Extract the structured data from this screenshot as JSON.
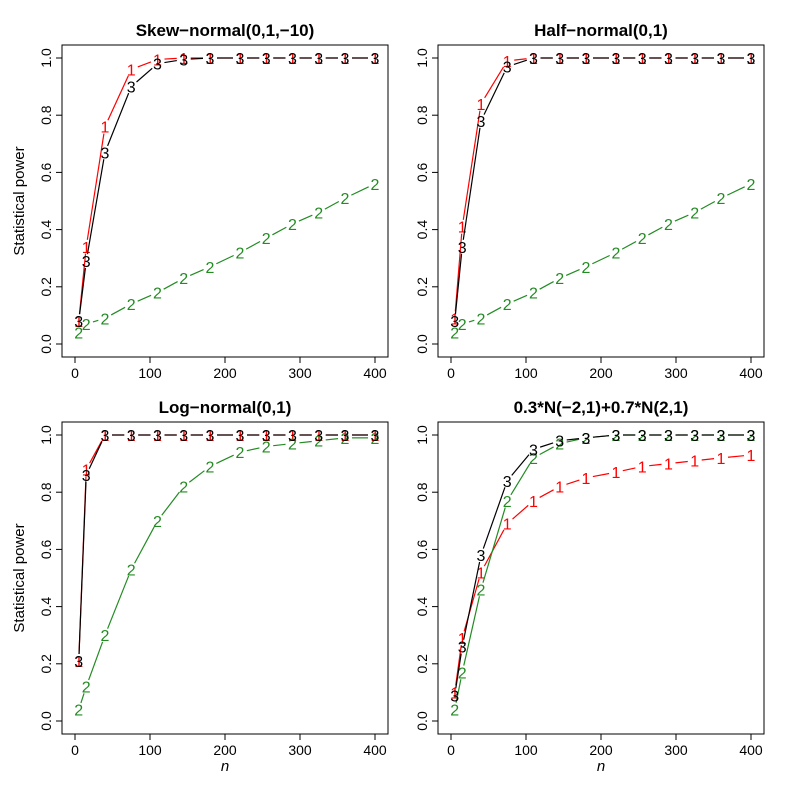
{
  "figure": {
    "x_label": "n",
    "y_label": "Statistical power"
  },
  "colors": {
    "1": "#ff0000",
    "2": "#228b22",
    "3": "#000000"
  },
  "chart_data": [
    {
      "type": "line",
      "title": "Skew−normal(0,1,−10)",
      "xlabel": "",
      "ylabel": "Statistical power",
      "xlim": [
        0,
        400
      ],
      "ylim": [
        0,
        1
      ],
      "x_ticks": [
        "0",
        "100",
        "200",
        "300",
        "400"
      ],
      "y_ticks": [
        "0.0",
        "0.2",
        "0.4",
        "0.6",
        "0.8",
        "1.0"
      ],
      "x": [
        5,
        15,
        40,
        75,
        110,
        145,
        180,
        220,
        255,
        290,
        325,
        360,
        400
      ],
      "series": [
        {
          "id": "1",
          "marker": "1",
          "values": [
            0.08,
            0.34,
            0.76,
            0.96,
            0.995,
            1,
            1,
            1,
            1,
            1,
            1,
            1,
            1
          ]
        },
        {
          "id": "2",
          "marker": "2",
          "values": [
            0.04,
            0.07,
            0.09,
            0.14,
            0.18,
            0.23,
            0.27,
            0.32,
            0.37,
            0.42,
            0.46,
            0.51,
            0.56
          ]
        },
        {
          "id": "3",
          "marker": "3",
          "values": [
            0.08,
            0.29,
            0.67,
            0.9,
            0.98,
            0.995,
            1,
            1,
            1,
            1,
            1,
            1,
            1
          ]
        }
      ]
    },
    {
      "type": "line",
      "title": "Half−normal(0,1)",
      "xlabel": "",
      "ylabel": "",
      "xlim": [
        0,
        400
      ],
      "ylim": [
        0,
        1
      ],
      "x_ticks": [
        "0",
        "100",
        "200",
        "300",
        "400"
      ],
      "y_ticks": [
        "0.0",
        "0.2",
        "0.4",
        "0.6",
        "0.8",
        "1.0"
      ],
      "x": [
        5,
        15,
        40,
        75,
        110,
        145,
        180,
        220,
        255,
        290,
        325,
        360,
        400
      ],
      "series": [
        {
          "id": "1",
          "marker": "1",
          "values": [
            0.09,
            0.41,
            0.84,
            0.99,
            1,
            1,
            1,
            1,
            1,
            1,
            1,
            1,
            1
          ]
        },
        {
          "id": "2",
          "marker": "2",
          "values": [
            0.04,
            0.07,
            0.09,
            0.14,
            0.18,
            0.23,
            0.27,
            0.32,
            0.37,
            0.42,
            0.46,
            0.51,
            0.56
          ]
        },
        {
          "id": "3",
          "marker": "3",
          "values": [
            0.08,
            0.34,
            0.78,
            0.97,
            1,
            1,
            1,
            1,
            1,
            1,
            1,
            1,
            1
          ]
        }
      ]
    },
    {
      "type": "line",
      "title": "Log−normal(0,1)",
      "xlabel": "n",
      "ylabel": "Statistical power",
      "xlim": [
        0,
        400
      ],
      "ylim": [
        0,
        1
      ],
      "x_ticks": [
        "0",
        "100",
        "200",
        "300",
        "400"
      ],
      "y_ticks": [
        "0.0",
        "0.2",
        "0.4",
        "0.6",
        "0.8",
        "1.0"
      ],
      "x": [
        5,
        15,
        40,
        75,
        110,
        145,
        180,
        220,
        255,
        290,
        325,
        360,
        400
      ],
      "series": [
        {
          "id": "1",
          "marker": "1",
          "values": [
            0.21,
            0.88,
            1,
            1,
            1,
            1,
            1,
            1,
            1,
            1,
            1,
            1,
            1
          ]
        },
        {
          "id": "2",
          "marker": "2",
          "values": [
            0.04,
            0.12,
            0.3,
            0.53,
            0.7,
            0.82,
            0.89,
            0.94,
            0.96,
            0.97,
            0.98,
            0.99,
            0.99
          ]
        },
        {
          "id": "3",
          "marker": "3",
          "values": [
            0.21,
            0.86,
            1,
            1,
            1,
            1,
            1,
            1,
            1,
            1,
            1,
            1,
            1
          ]
        }
      ]
    },
    {
      "type": "line",
      "title": "0.3*N(−2,1)+0.7*N(2,1)",
      "xlabel": "n",
      "ylabel": "",
      "xlim": [
        0,
        400
      ],
      "ylim": [
        0,
        1
      ],
      "x_ticks": [
        "0",
        "100",
        "200",
        "300",
        "400"
      ],
      "y_ticks": [
        "0.0",
        "0.2",
        "0.4",
        "0.6",
        "0.8",
        "1.0"
      ],
      "x": [
        5,
        15,
        40,
        75,
        110,
        145,
        180,
        220,
        255,
        290,
        325,
        360,
        400
      ],
      "series": [
        {
          "id": "1",
          "marker": "1",
          "values": [
            0.1,
            0.29,
            0.52,
            0.69,
            0.77,
            0.82,
            0.85,
            0.87,
            0.89,
            0.9,
            0.91,
            0.92,
            0.93
          ]
        },
        {
          "id": "2",
          "marker": "2",
          "values": [
            0.04,
            0.17,
            0.46,
            0.77,
            0.92,
            0.97,
            0.99,
            1,
            1,
            1,
            1,
            1,
            1
          ]
        },
        {
          "id": "3",
          "marker": "3",
          "values": [
            0.09,
            0.26,
            0.58,
            0.84,
            0.95,
            0.98,
            0.99,
            1,
            1,
            1,
            1,
            1,
            1
          ]
        }
      ]
    }
  ]
}
